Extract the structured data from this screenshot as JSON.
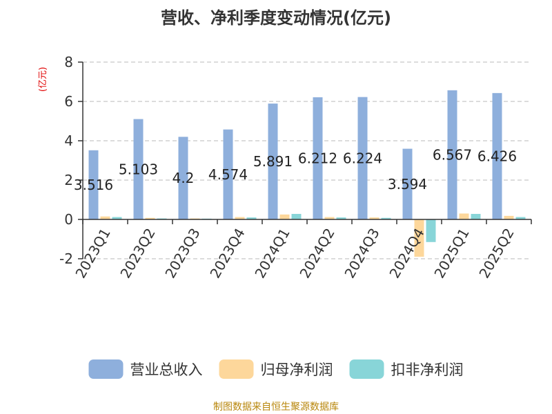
{
  "chart_data": {
    "type": "bar",
    "title": "营收、净利季度变动情况(亿元)",
    "ylabel": "(亿元)",
    "xlabel": "",
    "categories": [
      "2023Q1",
      "2023Q2",
      "2023Q3",
      "2023Q4",
      "2024Q1",
      "2024Q2",
      "2024Q3",
      "2024Q4",
      "2025Q1",
      "2025Q2"
    ],
    "ylim": [
      -2,
      8
    ],
    "yticks": [
      -2,
      0,
      2,
      4,
      6,
      8
    ],
    "grid": true,
    "legend_position": "bottom",
    "series": [
      {
        "name": "营业总收入",
        "color": "#8eafdc",
        "values": [
          3.516,
          5.103,
          4.2,
          4.574,
          5.891,
          6.212,
          6.224,
          3.594,
          6.567,
          6.426
        ],
        "data_labels": [
          "3.516",
          "5.103",
          "4.2",
          "4.574",
          "5.891",
          "6.212",
          "6.224",
          "3.594",
          "6.567",
          "6.426"
        ]
      },
      {
        "name": "归母净利润",
        "color": "#fdd79b",
        "values": [
          0.15,
          0.08,
          0.05,
          0.12,
          0.25,
          0.12,
          0.1,
          -1.9,
          0.3,
          0.18
        ]
      },
      {
        "name": "扣非净利润",
        "color": "#88d5d8",
        "values": [
          0.12,
          0.05,
          0.04,
          0.1,
          0.28,
          0.1,
          0.08,
          -1.15,
          0.28,
          0.12
        ]
      }
    ]
  },
  "source_text": "制图数据来自恒生聚源数据库"
}
